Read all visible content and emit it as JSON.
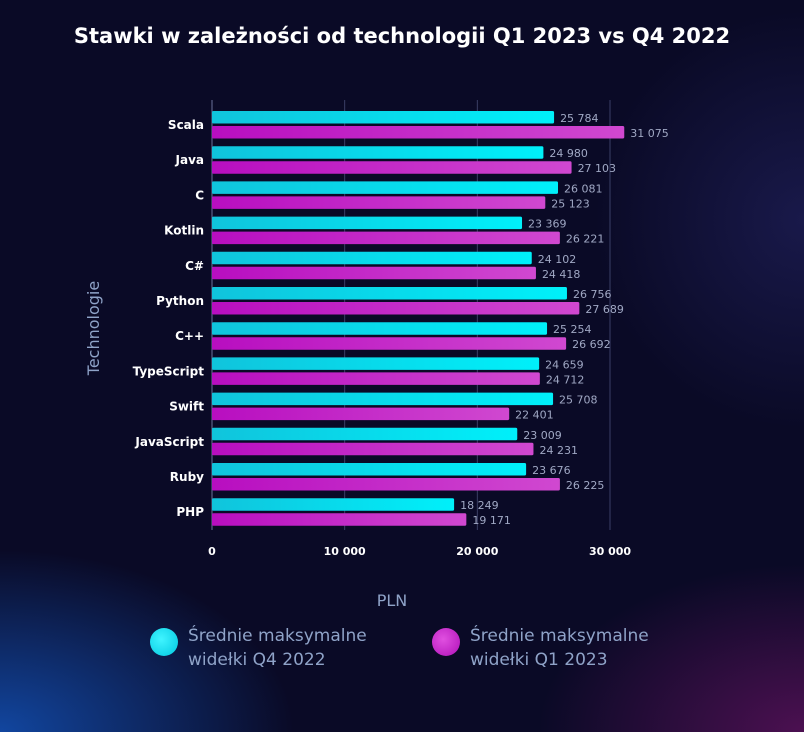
{
  "chart_data": {
    "type": "bar",
    "orientation": "horizontal",
    "title": "Stawki w zależności od technologii Q1 2023 vs Q4 2022",
    "xlabel": "PLN",
    "ylabel": "Technologie",
    "xlim": [
      0,
      32000
    ],
    "xticks": [
      0,
      10000,
      20000,
      30000
    ],
    "xtick_labels": [
      "0",
      "10 000",
      "20 000",
      "30 000"
    ],
    "grid": true,
    "legend_position": "bottom",
    "categories": [
      "Scala",
      "Java",
      "C",
      "Kotlin",
      "C#",
      "Python",
      "C++",
      "TypeScript",
      "Swift",
      "JavaScript",
      "Ruby",
      "PHP"
    ],
    "series": [
      {
        "name": "Średnie maksymalne widełki Q4 2022",
        "name_lines": [
          "Średnie maksymalne",
          "widełki Q4 2022"
        ],
        "color": "#00e5f5",
        "values": [
          25784,
          24980,
          26081,
          23369,
          24102,
          26756,
          25254,
          24659,
          25708,
          23009,
          23676,
          18249
        ],
        "labels": [
          "25 784",
          "24 980",
          "26 081",
          "23 369",
          "24 102",
          "26 756",
          "25 254",
          "24 659",
          "25 708",
          "23 009",
          "23 676",
          "18 249"
        ]
      },
      {
        "name": "Średnie maksymalne widełki Q1 2023",
        "name_lines": [
          "Średnie maksymalne",
          "widełki Q1 2023"
        ],
        "color": "#c21ac4",
        "values": [
          31075,
          27103,
          25123,
          26221,
          24418,
          27689,
          26692,
          24712,
          22401,
          24231,
          26225,
          19171
        ],
        "labels": [
          "31 075",
          "27 103",
          "25 123",
          "26 221",
          "24 418",
          "27 689",
          "26 692",
          "24 712",
          "22 401",
          "24 231",
          "26 225",
          "19 171"
        ]
      }
    ]
  }
}
